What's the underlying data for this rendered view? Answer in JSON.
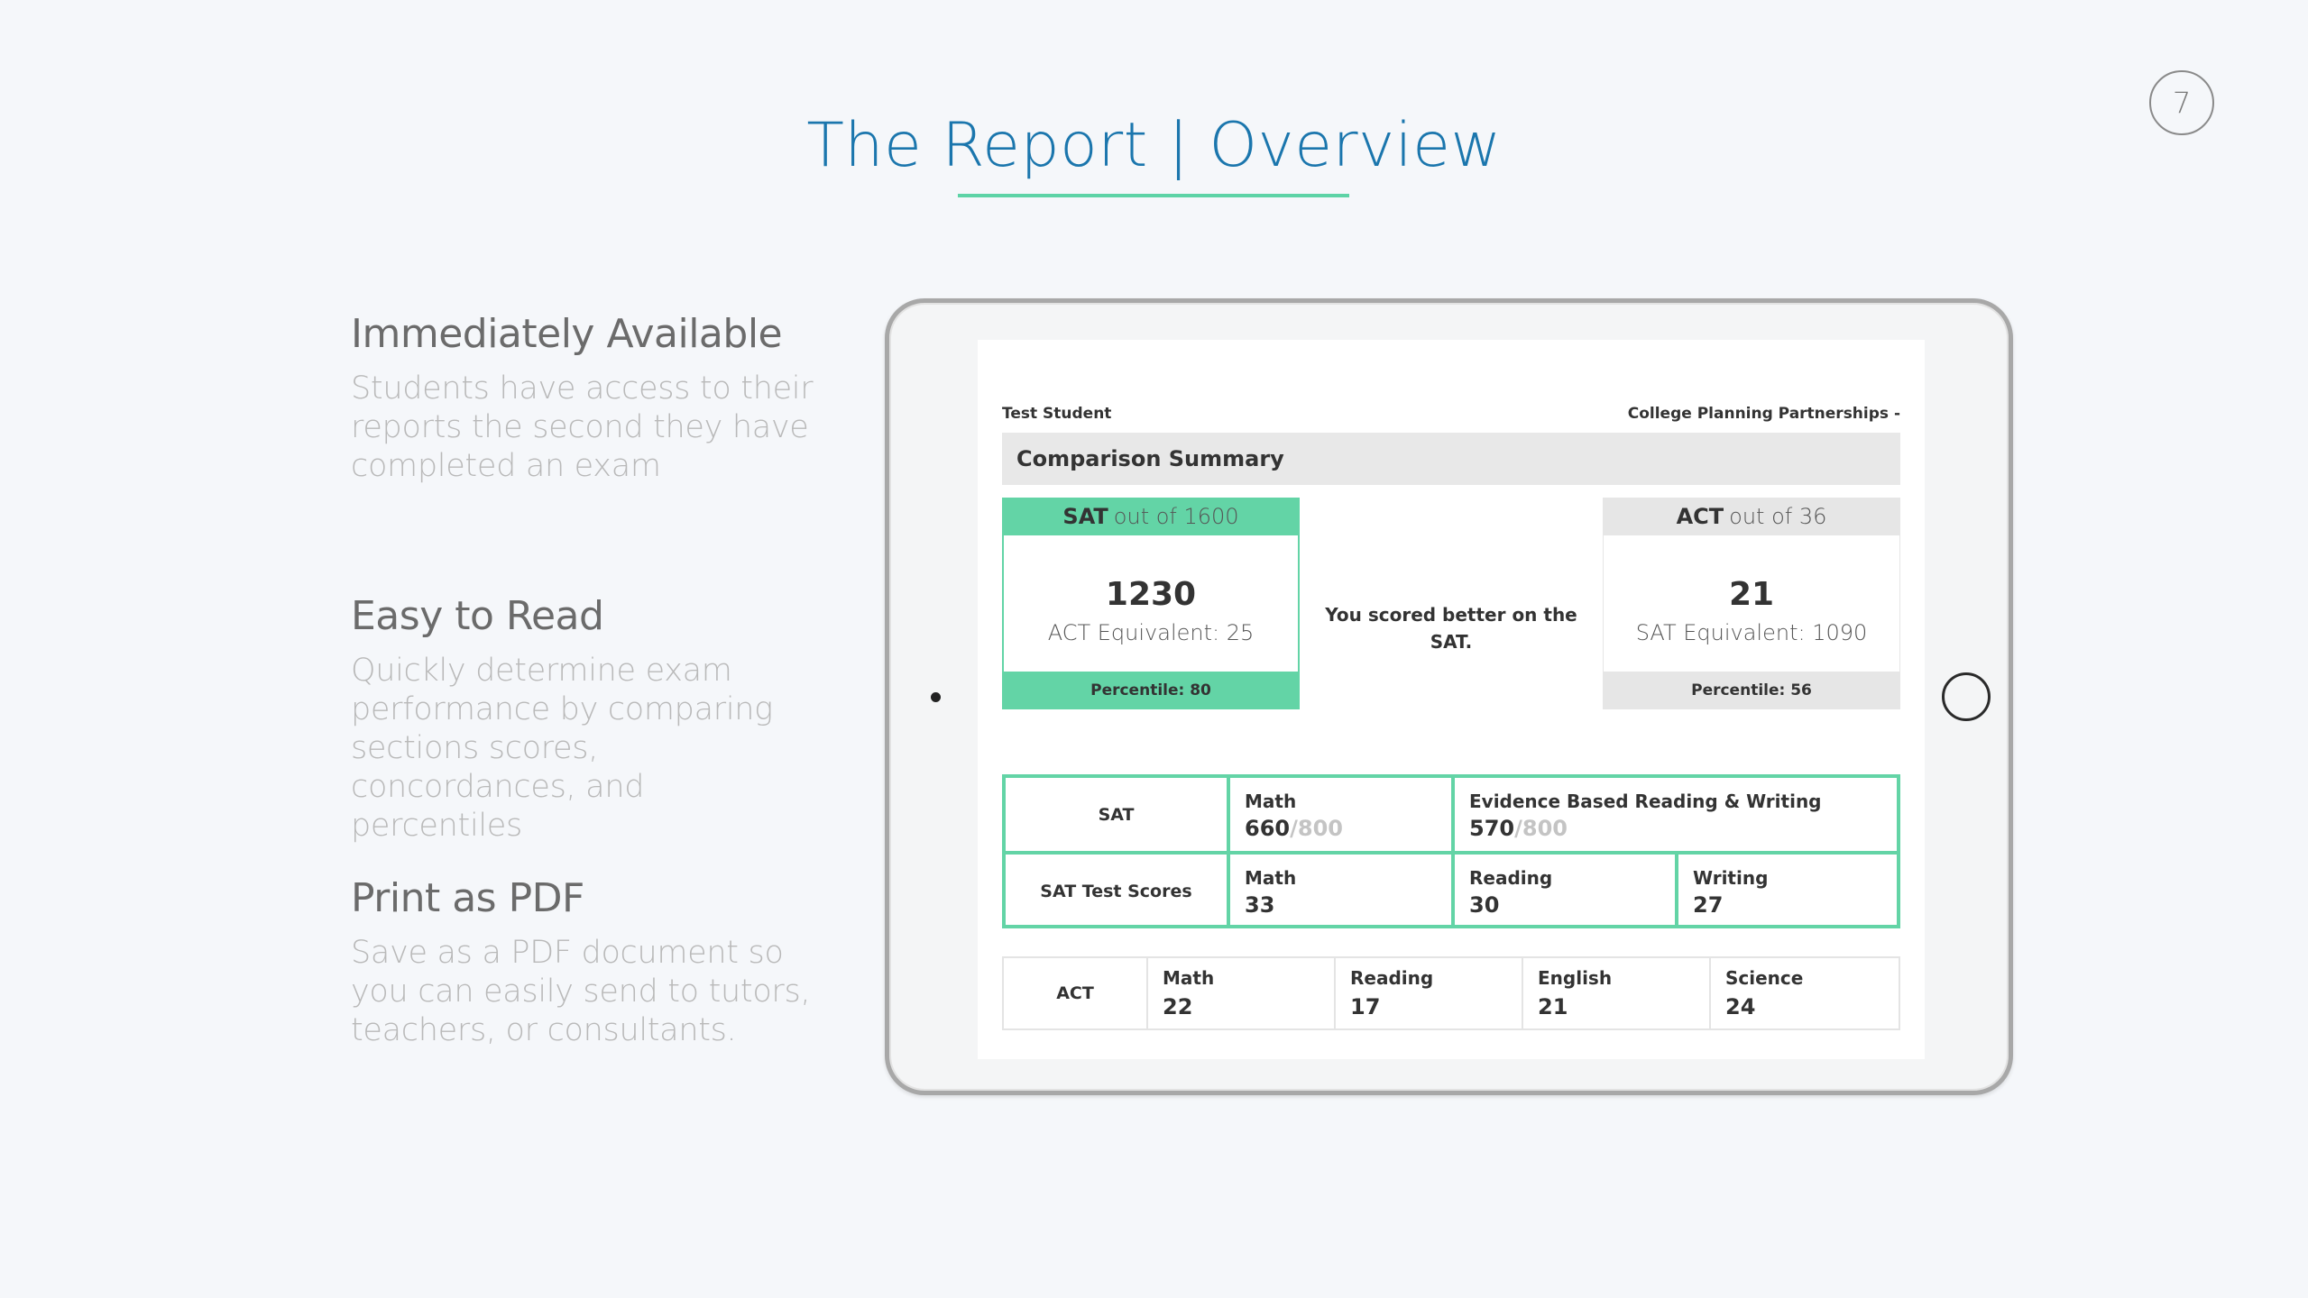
{
  "slide": {
    "page_number": "7",
    "title": "The Report | Overview",
    "accent_color": "#5dd3a6",
    "title_color": "#1b76ad"
  },
  "features": [
    {
      "heading": "Immediately Available",
      "text": "Students have access to their reports the second they have completed an exam"
    },
    {
      "heading": "Easy to Read",
      "text": "Quickly determine exam performance by comparing sections scores, concordances, and percentiles"
    },
    {
      "heading": "Print as PDF",
      "text": "Save as a PDF document so you can easily send to tutors, teachers, or consultants."
    }
  ],
  "report": {
    "student_name": "Test Student",
    "organization": "College Planning Partnerships -",
    "section_title": "Comparison Summary",
    "sat_card": {
      "label": "SAT",
      "scale": "out of 1600",
      "score": "1230",
      "equivalent": "ACT Equivalent: 25",
      "percentile": "Percentile: 80"
    },
    "act_card": {
      "label": "ACT",
      "scale": "out of 36",
      "score": "21",
      "equivalent": "SAT Equivalent: 1090",
      "percentile": "Percentile: 56"
    },
    "comparison_text": "You scored better on the SAT.",
    "sat_table": {
      "row1_label": "SAT",
      "math": {
        "title": "Math",
        "score": "660",
        "max": "/800"
      },
      "ebrw": {
        "title": "Evidence Based Reading & Writing",
        "score": "570",
        "max": "/800"
      },
      "row2_label": "SAT Test Scores",
      "test_math": {
        "title": "Math",
        "score": "33"
      },
      "test_reading": {
        "title": "Reading",
        "score": "30"
      },
      "test_writing": {
        "title": "Writing",
        "score": "27"
      }
    },
    "act_table": {
      "label": "ACT",
      "math": {
        "title": "Math",
        "score": "22"
      },
      "reading": {
        "title": "Reading",
        "score": "17"
      },
      "english": {
        "title": "English",
        "score": "21"
      },
      "science": {
        "title": "Science",
        "score": "24"
      }
    }
  }
}
